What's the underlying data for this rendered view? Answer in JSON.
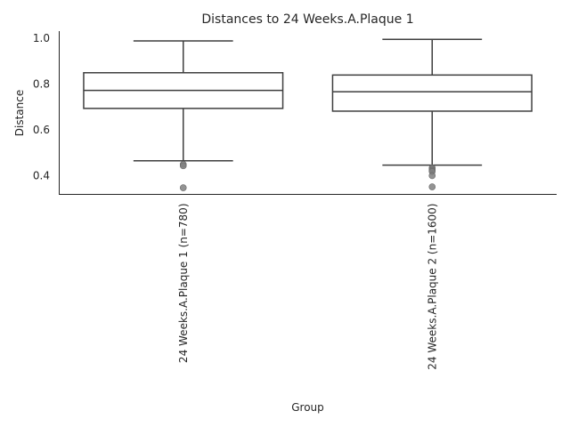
{
  "chart_data": {
    "type": "box",
    "title": "Distances to 24 Weeks.A.Plaque 1",
    "xlabel": "Group",
    "ylabel": "Distance",
    "ylim": [
      0.318,
      1.032
    ],
    "yticks": [
      "0.4",
      "0.6",
      "0.8",
      "1.0"
    ],
    "ytick_values": [
      0.4,
      0.6,
      0.8,
      1.0
    ],
    "grid": false,
    "x_tick_rotation": 90,
    "box_color": "#ffffff",
    "line_color": "#3f3f3f",
    "outlier_color": "#808080",
    "categories": [
      "24 Weeks.A.Plaque 1 (n=780)",
      "24 Weeks.A.Plaque 2 (n=1600)"
    ],
    "boxes": [
      {
        "whisker_low": 0.465,
        "q1": 0.694,
        "median": 0.773,
        "q3": 0.85,
        "whisker_high": 0.989,
        "outliers": [
          0.449,
          0.443,
          0.347
        ]
      },
      {
        "whisker_low": 0.446,
        "q1": 0.682,
        "median": 0.767,
        "q3": 0.84,
        "whisker_high": 0.996,
        "outliers": [
          0.434,
          0.429,
          0.423,
          0.418,
          0.4,
          0.351
        ]
      }
    ]
  }
}
